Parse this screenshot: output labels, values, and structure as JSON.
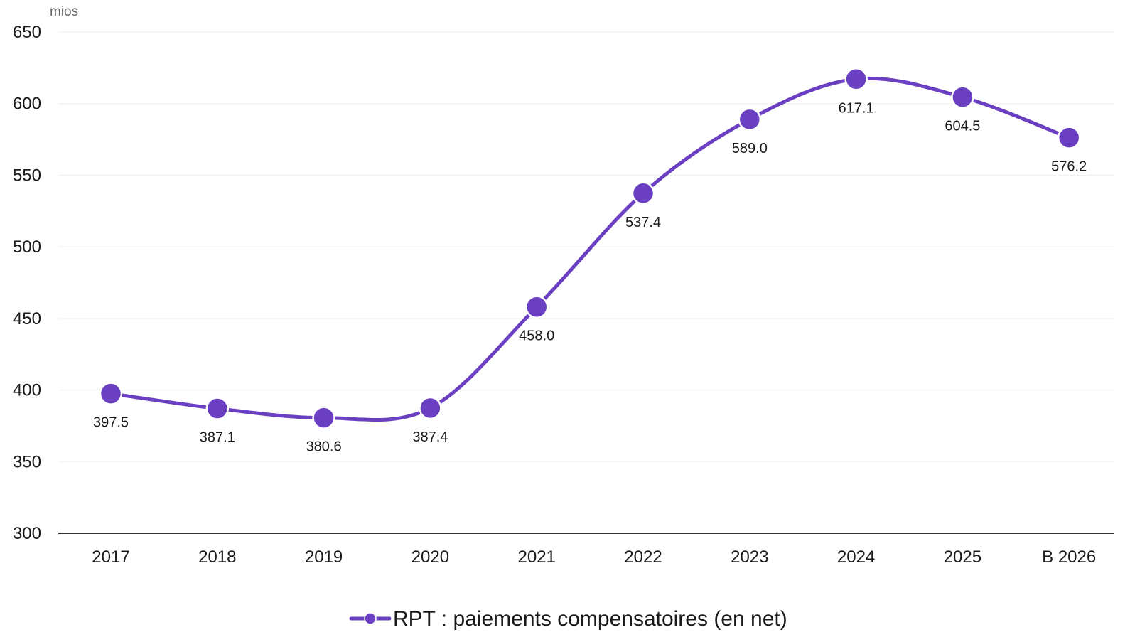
{
  "chart_data": {
    "type": "line",
    "title": "",
    "unit_label": "mios",
    "xlabel": "",
    "ylabel": "",
    "ylim": [
      300,
      650
    ],
    "yticks": [
      300,
      350,
      400,
      450,
      500,
      550,
      600,
      650
    ],
    "ytick_labels": [
      "300",
      "350",
      "400",
      "450",
      "500",
      "550",
      "600",
      "650"
    ],
    "categories": [
      "2017",
      "2018",
      "2019",
      "2020",
      "2021",
      "2022",
      "2023",
      "2024",
      "2025",
      "B 2026"
    ],
    "series": [
      {
        "name": "RPT : paiements compensatoires (en net)",
        "color": "#6a3fc1",
        "values": [
          397.5,
          387.1,
          380.6,
          387.4,
          458.0,
          537.4,
          589.0,
          617.1,
          604.5,
          576.2
        ],
        "labels": [
          "397.5",
          "387.1",
          "380.6",
          "387.4",
          "458.0",
          "537.4",
          "589.0",
          "617.1",
          "604.5",
          "576.2"
        ]
      }
    ],
    "smooth": true,
    "grid": true,
    "legend_position": "bottom"
  }
}
